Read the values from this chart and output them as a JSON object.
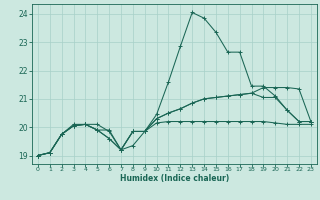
{
  "xlabel": "Humidex (Indice chaleur)",
  "xlim": [
    -0.5,
    23.5
  ],
  "ylim": [
    18.7,
    24.35
  ],
  "yticks": [
    19,
    20,
    21,
    22,
    23,
    24
  ],
  "xticks": [
    0,
    1,
    2,
    3,
    4,
    5,
    6,
    7,
    8,
    9,
    10,
    11,
    12,
    13,
    14,
    15,
    16,
    17,
    18,
    19,
    20,
    21,
    22,
    23
  ],
  "bg_color": "#cce8e0",
  "line_color": "#1a6655",
  "grid_color": "#a8d0c8",
  "series": [
    {
      "x": [
        0,
        1,
        2,
        3,
        4,
        5,
        6,
        7,
        8,
        9,
        10,
        11,
        12,
        13,
        14,
        15,
        16,
        17,
        18,
        19,
        20,
        21,
        22,
        23
      ],
      "y": [
        19.0,
        19.1,
        19.75,
        20.1,
        20.1,
        20.1,
        19.85,
        19.2,
        19.35,
        19.85,
        20.45,
        21.6,
        22.85,
        24.05,
        23.85,
        23.35,
        22.65,
        22.65,
        21.45,
        21.45,
        21.1,
        20.6,
        20.2,
        20.2
      ]
    },
    {
      "x": [
        0,
        1,
        2,
        3,
        4,
        5,
        6,
        7,
        8,
        9,
        10,
        11,
        12,
        13,
        14,
        15,
        16,
        17,
        18,
        19,
        20,
        21,
        22,
        23
      ],
      "y": [
        19.0,
        19.1,
        19.75,
        20.05,
        20.1,
        19.9,
        19.9,
        19.2,
        19.85,
        19.85,
        20.15,
        20.2,
        20.2,
        20.2,
        20.2,
        20.2,
        20.2,
        20.2,
        20.2,
        20.2,
        20.15,
        20.1,
        20.1,
        20.1
      ]
    },
    {
      "x": [
        0,
        1,
        2,
        3,
        4,
        5,
        6,
        7,
        8,
        9,
        10,
        11,
        12,
        13,
        14,
        15,
        16,
        17,
        18,
        19,
        20,
        21,
        22,
        23
      ],
      "y": [
        19.0,
        19.1,
        19.75,
        20.05,
        20.1,
        19.9,
        19.6,
        19.2,
        19.85,
        19.85,
        20.3,
        20.5,
        20.65,
        20.85,
        21.0,
        21.05,
        21.1,
        21.15,
        21.2,
        21.05,
        21.05,
        20.6,
        20.2,
        20.2
      ]
    },
    {
      "x": [
        0,
        1,
        2,
        3,
        4,
        5,
        6,
        7,
        8,
        9,
        10,
        11,
        12,
        13,
        14,
        15,
        16,
        17,
        18,
        19,
        20,
        21,
        22,
        23
      ],
      "y": [
        19.0,
        19.1,
        19.75,
        20.05,
        20.1,
        19.9,
        19.6,
        19.2,
        19.85,
        19.85,
        20.3,
        20.5,
        20.65,
        20.85,
        21.0,
        21.05,
        21.1,
        21.15,
        21.2,
        21.4,
        21.4,
        21.4,
        21.35,
        20.2
      ]
    }
  ]
}
